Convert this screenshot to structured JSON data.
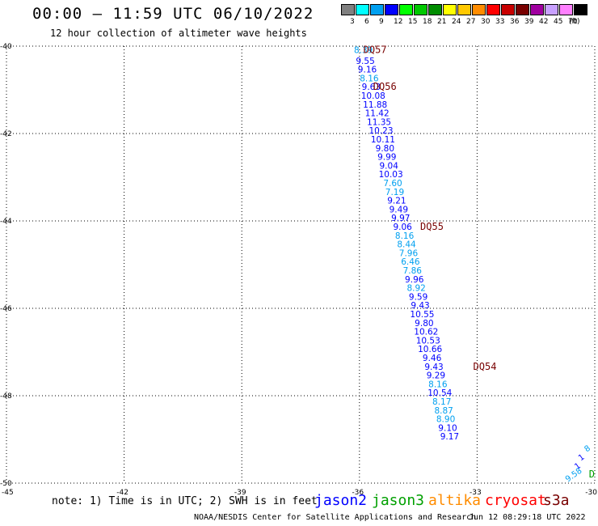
{
  "header": {
    "title": "00:00 – 11:59 UTC 06/10/2022",
    "subtitle": "12 hour collection of altimeter wave heights"
  },
  "legend": {
    "unit": "(ft)",
    "bins": [
      {
        "label": "3",
        "color": "#808080"
      },
      {
        "label": "6",
        "color": "#00ffff"
      },
      {
        "label": "9",
        "color": "#00a0f0"
      },
      {
        "label": "12",
        "color": "#0000ff"
      },
      {
        "label": "15",
        "color": "#00ff00"
      },
      {
        "label": "18",
        "color": "#00c800"
      },
      {
        "label": "21",
        "color": "#008c00"
      },
      {
        "label": "24",
        "color": "#ffff00"
      },
      {
        "label": "27",
        "color": "#ffc800"
      },
      {
        "label": "30",
        "color": "#ff8c00"
      },
      {
        "label": "33",
        "color": "#ff0000"
      },
      {
        "label": "36",
        "color": "#c80000"
      },
      {
        "label": "39",
        "color": "#780000"
      },
      {
        "label": "42",
        "color": "#a000a0"
      },
      {
        "label": "45",
        "color": "#c8a0ff"
      },
      {
        "label": "70",
        "color": "#ff80ff"
      },
      {
        "label": "",
        "color": "#000000"
      }
    ]
  },
  "axes": {
    "lon_ticks": [
      "-45",
      "-42",
      "-39",
      "-36",
      "-33",
      "-30"
    ],
    "lat_ticks": [
      "-40",
      "-42",
      "-44",
      "-46",
      "-48",
      "-50"
    ],
    "lon_range": [
      -45,
      -30
    ],
    "lat_range": [
      -50,
      -40
    ],
    "grid": true
  },
  "chart_data": {
    "type": "scatter",
    "lat_ticks": [
      -40,
      -42,
      -44,
      -46,
      -48,
      -50
    ],
    "lon_ticks": [
      -45,
      -42,
      -39,
      -36,
      -33,
      -30
    ],
    "colors": {
      "c": "#00a0f0",
      "b": "#0000ff",
      "d": "#780000"
    },
    "track": [
      {
        "lon": -35.9,
        "lat": -40.08,
        "v": "8.39",
        "c": "c"
      },
      {
        "lon": -35.85,
        "lat": -40.33,
        "v": "9.55",
        "c": "b"
      },
      {
        "lon": -35.8,
        "lat": -40.53,
        "v": "9.16",
        "c": "b"
      },
      {
        "lon": -35.75,
        "lat": -40.73,
        "v": "8.16",
        "c": "c"
      },
      {
        "lon": -35.7,
        "lat": -40.93,
        "v": "9.63",
        "c": "b"
      },
      {
        "lon": -35.65,
        "lat": -41.13,
        "v": "10.08",
        "c": "b"
      },
      {
        "lon": -35.6,
        "lat": -41.33,
        "v": "11.88",
        "c": "b"
      },
      {
        "lon": -35.55,
        "lat": -41.53,
        "v": "11.42",
        "c": "b"
      },
      {
        "lon": -35.5,
        "lat": -41.73,
        "v": "11.35",
        "c": "b"
      },
      {
        "lon": -35.45,
        "lat": -41.93,
        "v": "10.23",
        "c": "b"
      },
      {
        "lon": -35.4,
        "lat": -42.13,
        "v": "10.11",
        "c": "b"
      },
      {
        "lon": -35.35,
        "lat": -42.33,
        "v": "9.80",
        "c": "b"
      },
      {
        "lon": -35.3,
        "lat": -42.53,
        "v": "9.99",
        "c": "b"
      },
      {
        "lon": -35.25,
        "lat": -42.73,
        "v": "9.04",
        "c": "b"
      },
      {
        "lon": -35.2,
        "lat": -42.93,
        "v": "10.03",
        "c": "b"
      },
      {
        "lon": -35.15,
        "lat": -43.13,
        "v": "7.60",
        "c": "c"
      },
      {
        "lon": -35.1,
        "lat": -43.33,
        "v": "7.19",
        "c": "c"
      },
      {
        "lon": -35.05,
        "lat": -43.53,
        "v": "9.21",
        "c": "b"
      },
      {
        "lon": -35.0,
        "lat": -43.73,
        "v": "9.49",
        "c": "b"
      },
      {
        "lon": -34.95,
        "lat": -43.93,
        "v": "9.97",
        "c": "b"
      },
      {
        "lon": -34.9,
        "lat": -44.13,
        "v": "9.06",
        "c": "b"
      },
      {
        "lon": -34.85,
        "lat": -44.33,
        "v": "8.16",
        "c": "c"
      },
      {
        "lon": -34.8,
        "lat": -44.53,
        "v": "8.44",
        "c": "c"
      },
      {
        "lon": -34.75,
        "lat": -44.73,
        "v": "7.96",
        "c": "c"
      },
      {
        "lon": -34.7,
        "lat": -44.93,
        "v": "6.46",
        "c": "c"
      },
      {
        "lon": -34.65,
        "lat": -45.13,
        "v": "7.86",
        "c": "c"
      },
      {
        "lon": -34.6,
        "lat": -45.33,
        "v": "9.96",
        "c": "b"
      },
      {
        "lon": -34.55,
        "lat": -45.53,
        "v": "8.92",
        "c": "c"
      },
      {
        "lon": -34.5,
        "lat": -45.73,
        "v": "9.59",
        "c": "b"
      },
      {
        "lon": -34.45,
        "lat": -45.93,
        "v": "9.43",
        "c": "b"
      },
      {
        "lon": -34.4,
        "lat": -46.13,
        "v": "10.55",
        "c": "b"
      },
      {
        "lon": -34.35,
        "lat": -46.33,
        "v": "9.80",
        "c": "b"
      },
      {
        "lon": -34.3,
        "lat": -46.53,
        "v": "10.62",
        "c": "b"
      },
      {
        "lon": -34.25,
        "lat": -46.73,
        "v": "10.53",
        "c": "b"
      },
      {
        "lon": -34.2,
        "lat": -46.93,
        "v": "10.66",
        "c": "b"
      },
      {
        "lon": -34.15,
        "lat": -47.13,
        "v": "9.46",
        "c": "b"
      },
      {
        "lon": -34.1,
        "lat": -47.33,
        "v": "9.43",
        "c": "b"
      },
      {
        "lon": -34.05,
        "lat": -47.53,
        "v": "9.29",
        "c": "b"
      },
      {
        "lon": -34.0,
        "lat": -47.73,
        "v": "8.16",
        "c": "c"
      },
      {
        "lon": -33.95,
        "lat": -47.93,
        "v": "10.54",
        "c": "b"
      },
      {
        "lon": -33.9,
        "lat": -48.13,
        "v": "8.17",
        "c": "c"
      },
      {
        "lon": -33.85,
        "lat": -48.33,
        "v": "8.87",
        "c": "c"
      },
      {
        "lon": -33.8,
        "lat": -48.53,
        "v": "8.90",
        "c": "c"
      },
      {
        "lon": -33.75,
        "lat": -48.73,
        "v": "9.10",
        "c": "b"
      },
      {
        "lon": -33.7,
        "lat": -48.93,
        "v": "9.17",
        "c": "b"
      }
    ],
    "track_labels": [
      {
        "lon": -35.9,
        "lat": -40.08,
        "v": "DQ57",
        "c": "d"
      },
      {
        "lon": -35.65,
        "lat": -40.93,
        "v": "DQ56",
        "c": "d"
      },
      {
        "lon": -34.45,
        "lat": -44.13,
        "v": "DQ55",
        "c": "d"
      },
      {
        "lon": -33.1,
        "lat": -47.33,
        "v": "DQ54",
        "c": "d"
      },
      {
        "lon": -30.15,
        "lat": -49.8,
        "v": "D",
        "c": "g"
      }
    ],
    "corner_points": [
      {
        "lon": -30.2,
        "lat": -49.2,
        "v": "8",
        "c": "c"
      },
      {
        "lon": -30.35,
        "lat": -49.4,
        "v": "1",
        "c": "b"
      },
      {
        "lon": -30.45,
        "lat": -49.6,
        "v": "1",
        "c": "b"
      },
      {
        "lon": -30.55,
        "lat": -49.8,
        "v": "9.58",
        "c": "c"
      }
    ]
  },
  "footer": {
    "note": "note: 1) Time is in UTC; 2) SWH is in feet",
    "satellites": [
      {
        "name": "jason2",
        "color": "#0000ff"
      },
      {
        "name": "jason3",
        "color": "#00a000"
      },
      {
        "name": "altika",
        "color": "#ff8c00"
      },
      {
        "name": "cryosat",
        "color": "#ff0000"
      },
      {
        "name": "s3a",
        "color": "#780000"
      }
    ],
    "credit": "NOAA/NESDIS Center for Satellite Applications and Research",
    "timestamp": "Jun 12 08:29:18 UTC 2022"
  }
}
